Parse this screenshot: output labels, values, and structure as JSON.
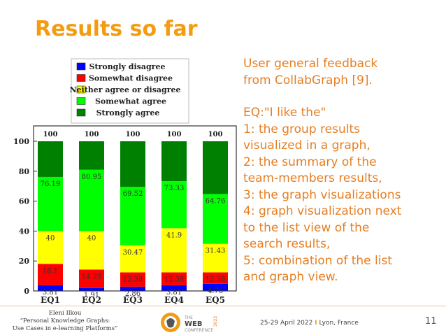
{
  "slide": {
    "title": "Results so far",
    "feedback_lines": [
      "User general feedback",
      "from CollabGraph [9]."
    ],
    "eq_lines": [
      "EQ:\"I like the\"",
      "1: the group results",
      "visualized in a graph,",
      "2: the summary of the",
      "team-members results,",
      "3: the graph visualizations",
      "4: graph visualization next",
      "to the list view of the",
      "search results,",
      "5: combination of the list",
      "and graph view."
    ],
    "footer": {
      "author_lines": [
        "Eleni Ilkou",
        "“Personal Knowledge Graphs:",
        "Use Cases in e-learning Platforms”"
      ],
      "logo_text_1": "THE",
      "logo_text_2": "WEB",
      "logo_text_3": "CONFERENCE",
      "logo_year": "2022",
      "date_text": "25-29 April 2022",
      "separator": "I",
      "location": "Lyon, France",
      "page_number": "11"
    }
  },
  "chart_data": {
    "type": "bar",
    "stacked": true,
    "categories": [
      "EQ1",
      "EQ2",
      "EQ3",
      "EQ4",
      "EQ5"
    ],
    "series": [
      {
        "name": "Strongly disagree",
        "color": "#0000ff",
        "values": [
          3.81,
          1.91,
          2.86,
          3.81,
          4.76
        ]
      },
      {
        "name": "Somewhat disagree",
        "color": "#ff0000",
        "values": [
          14.29,
          12.38,
          9.52,
          8.57,
          7.62
        ]
      },
      {
        "name": "Neither agree or disagree",
        "color": "#ffff00",
        "values": [
          21.9,
          25.71,
          18.09,
          29.52,
          19.05
        ]
      },
      {
        "name": "Somewhat agree",
        "color": "#00ff00",
        "values": [
          36.19,
          40.95,
          39.05,
          31.43,
          33.33
        ]
      },
      {
        "name": "Strongly agree",
        "color": "#008000",
        "values": [
          23.81,
          19.05,
          30.48,
          26.67,
          35.24
        ]
      }
    ],
    "cumulative_labels": [
      [
        "3.81",
        "18.1",
        "40",
        "76.19",
        "100"
      ],
      [
        "1.91",
        "14.29",
        "40",
        "80.95",
        "100"
      ],
      [
        "2.86",
        "12.38",
        "30.47",
        "69.52",
        "100"
      ],
      [
        "3.81",
        "12.38",
        "41.9",
        "73.33",
        "100"
      ],
      [
        "4.76",
        "12.38",
        "31.43",
        "64.76",
        "100"
      ]
    ],
    "y_ticks": [
      "0",
      "20",
      "40",
      "60",
      "80",
      "100"
    ],
    "ylim": [
      0,
      100
    ],
    "grid": false,
    "legend_position": "top"
  }
}
